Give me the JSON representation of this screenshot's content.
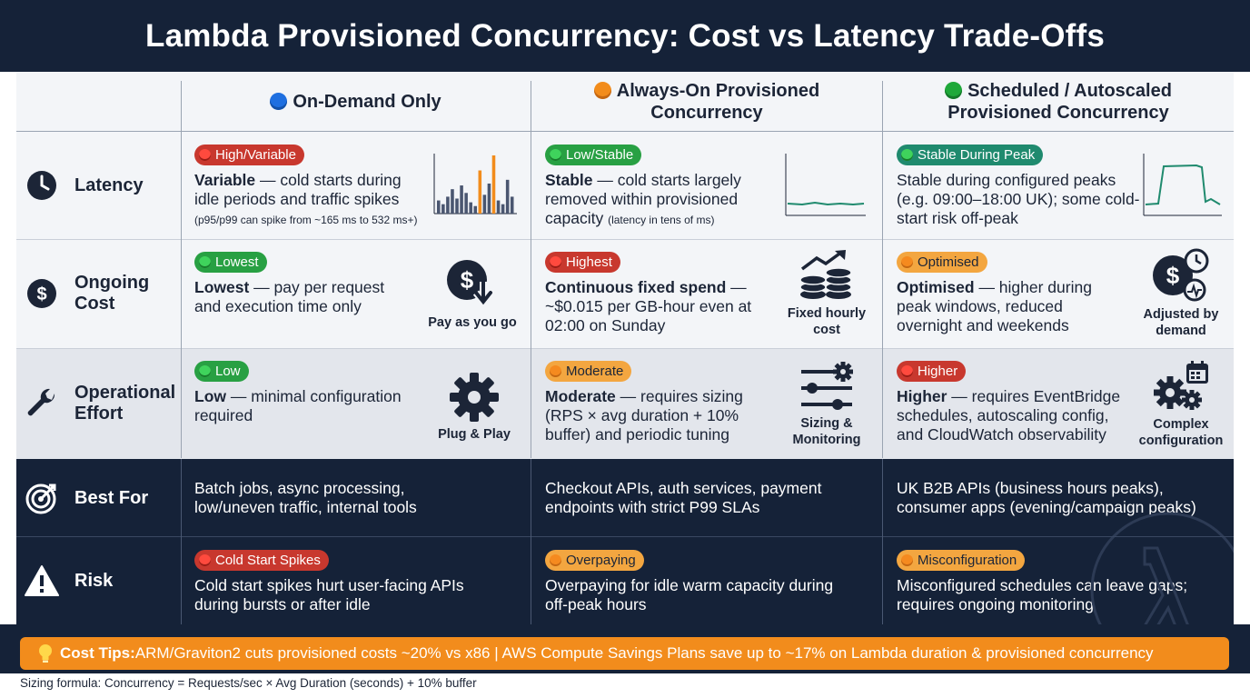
{
  "title": "Lambda Provisioned Concurrency: Cost vs Latency Trade-Offs",
  "columns": [
    {
      "dot_color": "#1e6fe0",
      "label": "On-Demand Only"
    },
    {
      "dot_color": "#f28c1c",
      "label_line1": "Always-On Provisioned",
      "label_line2": "Concurrency"
    },
    {
      "dot_color": "#1fa83a",
      "label_line1": "Scheduled / Autoscaled",
      "label_line2": "Provisioned Concurrency"
    }
  ],
  "rows": {
    "latency": {
      "label": "Latency",
      "icon": "clock-icon",
      "cells": [
        {
          "badge": "High/Variable",
          "badge_color": "red",
          "bold": "Variable",
          "text": " — cold starts during idle periods and traffic spikes",
          "note": "(p95/p99 can spike from ~165 ms to 532 ms+)"
        },
        {
          "badge": "Low/Stable",
          "badge_color": "green",
          "bold": "Stable",
          "text": " — cold starts largely removed within provisioned capacity",
          "note": "(latency in tens of ms)"
        },
        {
          "badge": "Stable During Peak",
          "badge_color": "teal",
          "text": "Stable during configured peaks (e.g. 09:00–18:00 UK); some cold-start risk off-peak"
        }
      ]
    },
    "cost": {
      "label_line1": "Ongoing",
      "label_line2": "Cost",
      "icon": "dollar-icon",
      "cells": [
        {
          "badge": "Lowest",
          "badge_color": "green",
          "bold": "Lowest",
          "text": " — pay per request and execution time only",
          "icon_caption": "Pay as you go"
        },
        {
          "badge": "Highest",
          "badge_color": "red",
          "bold": "Continuous fixed spend",
          "text": " — ~$0.015 per GB-hour even at 02:00 on Sunday",
          "icon_caption_line1": "Fixed hourly",
          "icon_caption_line2": "cost"
        },
        {
          "badge": "Optimised",
          "badge_color": "orange",
          "bold": "Optimised",
          "text": " — higher during peak windows, reduced overnight and weekends",
          "icon_caption_line1": "Adjusted by",
          "icon_caption_line2": "demand"
        }
      ]
    },
    "effort": {
      "label_line1": "Operational",
      "label_line2": "Effort",
      "icon": "wrench-icon",
      "cells": [
        {
          "badge": "Low",
          "badge_color": "green",
          "bold": "Low",
          "text": " — minimal configuration required",
          "icon_caption": "Plug & Play"
        },
        {
          "badge": "Moderate",
          "badge_color": "orange",
          "bold": "Moderate",
          "text": " — requires sizing (RPS × avg duration + 10% buffer) and periodic tuning",
          "icon_caption_line1": "Sizing &",
          "icon_caption_line2": "Monitoring"
        },
        {
          "badge": "Higher",
          "badge_color": "red",
          "bold": "Higher",
          "text": " — requires EventBridge schedules, autoscaling config, and CloudWatch observability",
          "icon_caption_line1": "Complex",
          "icon_caption_line2": "configuration"
        }
      ]
    },
    "best_for": {
      "label": "Best For",
      "icon": "target-icon",
      "cells": [
        {
          "text": "Batch jobs, async processing, low/uneven traffic, internal tools"
        },
        {
          "text": "Checkout APIs, auth services, payment endpoints with strict P99 SLAs"
        },
        {
          "text": "UK B2B APIs (business hours peaks), consumer apps (evening/campaign peaks)"
        }
      ]
    },
    "risk": {
      "label": "Risk",
      "icon": "warning-icon",
      "cells": [
        {
          "badge": "Cold Start Spikes",
          "badge_color": "red",
          "text": "Cold start spikes hurt user-facing APIs during bursts or after idle"
        },
        {
          "badge": "Overpaying",
          "badge_color": "orange",
          "text": "Overpaying for idle warm capacity during off-peak hours"
        },
        {
          "badge": "Misconfiguration",
          "badge_color": "orange",
          "text": "Misconfigured schedules can leave gaps; requires ongoing monitoring"
        }
      ]
    }
  },
  "latency_sparkline_values": [
    14,
    10,
    18,
    26,
    16,
    30,
    22,
    12,
    8,
    46,
    20,
    32,
    62,
    14,
    10,
    36,
    18
  ],
  "latency_sparkline_highlight": [
    9,
    12
  ],
  "cost_tips": {
    "icon": "lightbulb-icon",
    "label": "Cost Tips:",
    "text": " ARM/Graviton2 cuts provisioned costs ~20% vs x86 | AWS Compute Savings Plans save up to ~17% on Lambda duration & provisioned concurrency"
  },
  "footer": "Sizing formula: Concurrency = Requests/sec × Avg Duration (seconds) + 10% buffer",
  "colors": {
    "navy": "#152238",
    "orange": "#f28c1c",
    "red": "#c8382e",
    "green": "#28a043",
    "teal": "#1f8a6e"
  }
}
